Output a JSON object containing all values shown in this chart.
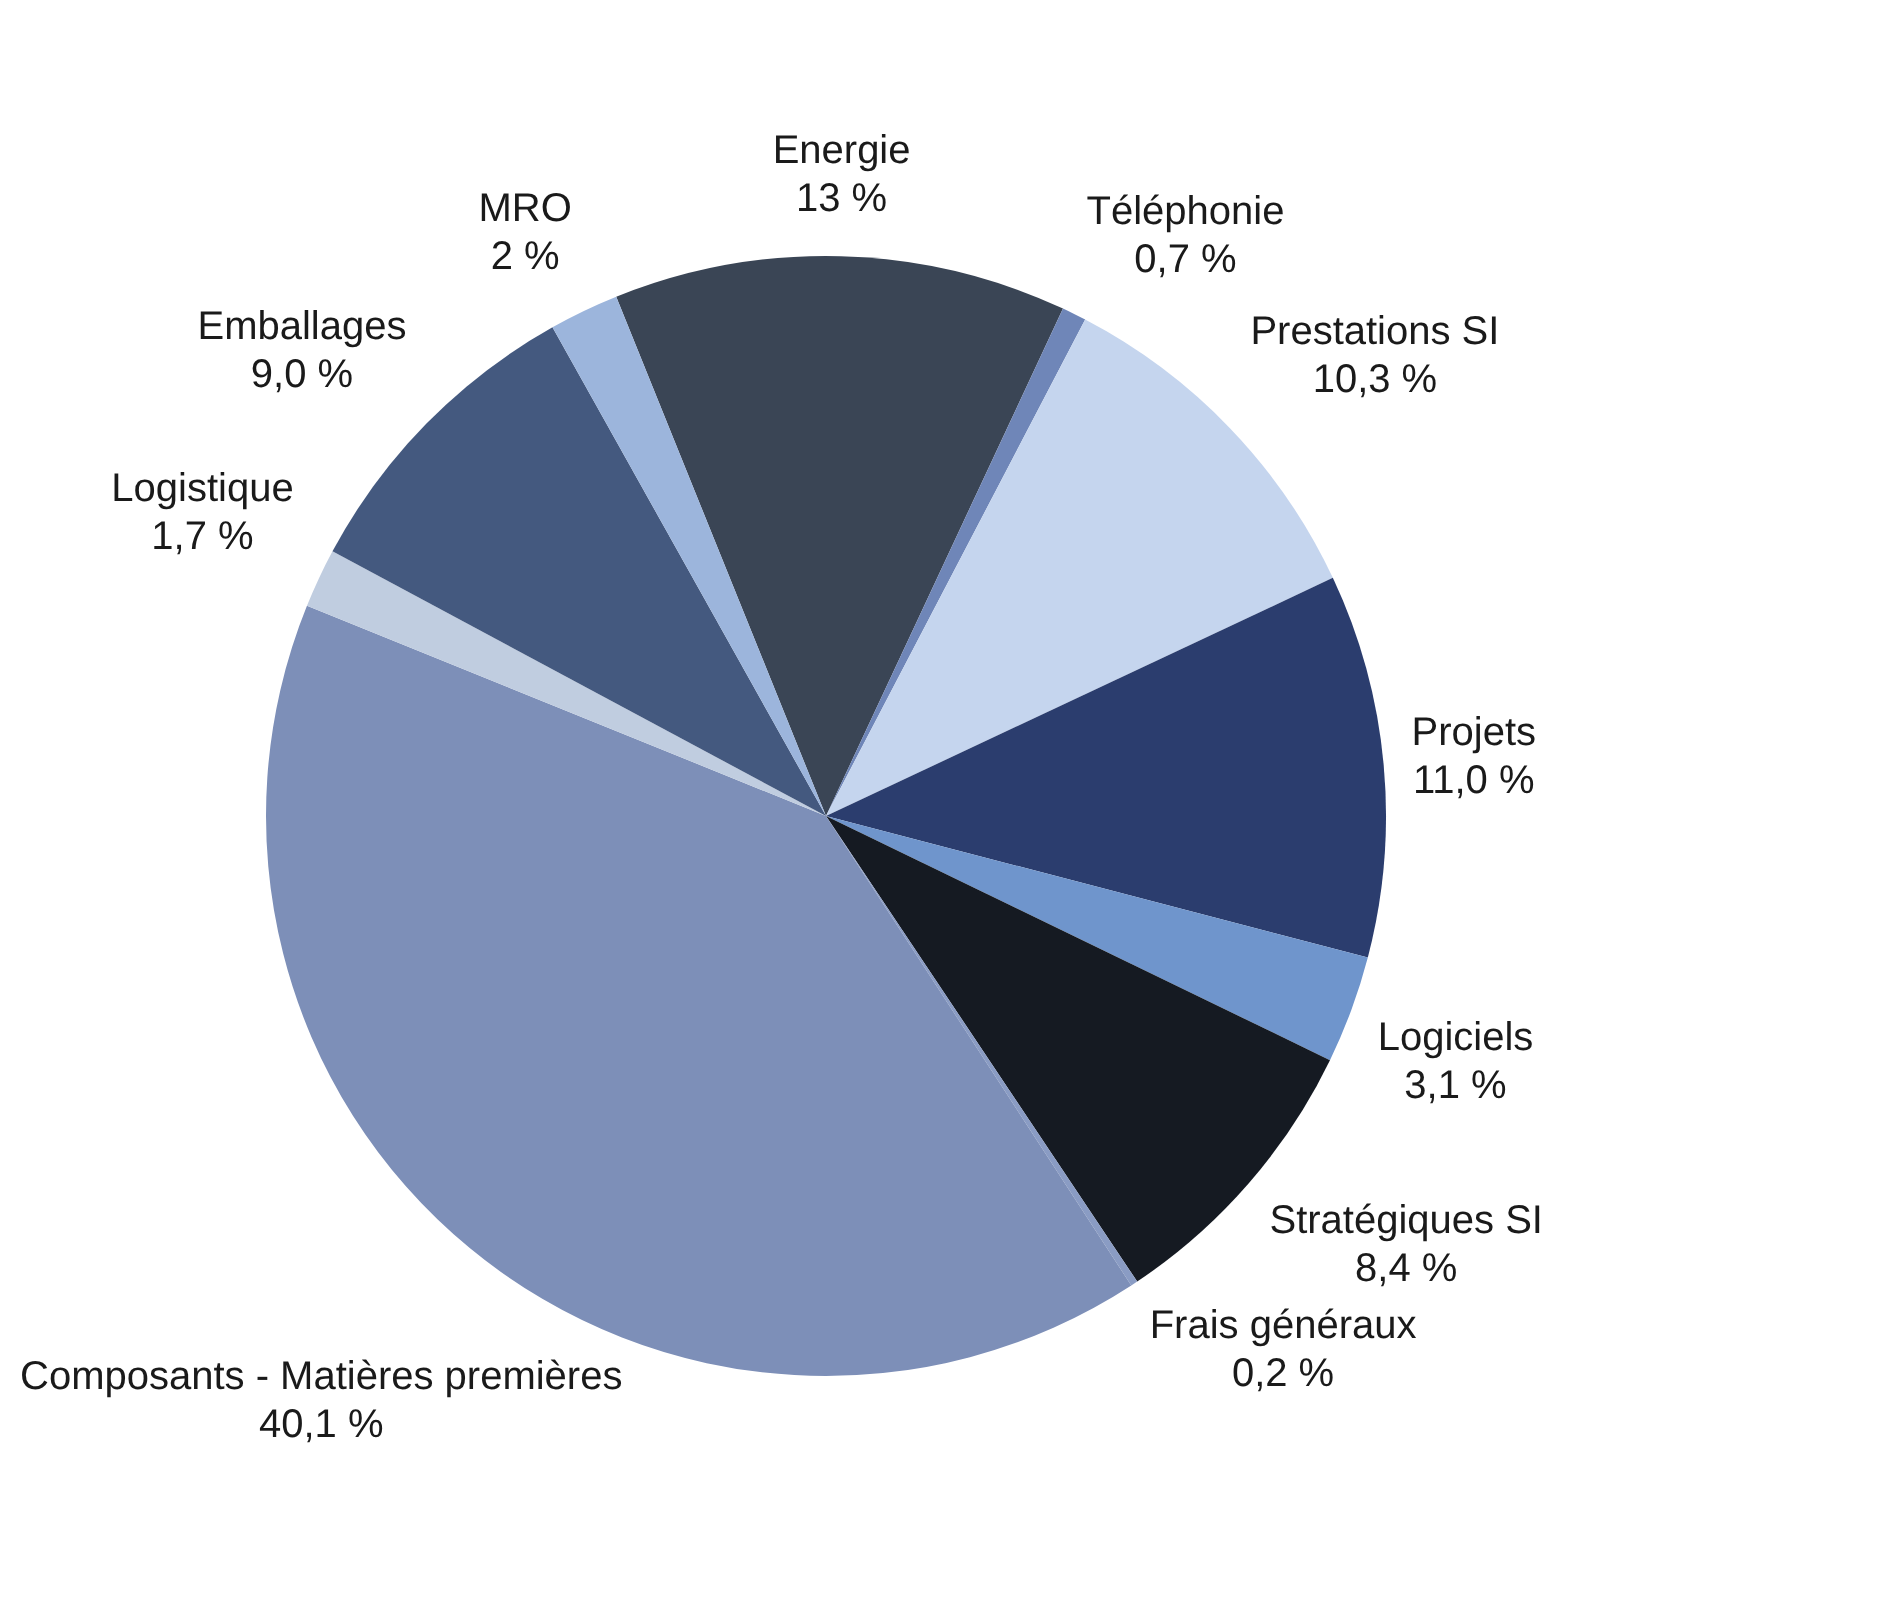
{
  "chart_data": {
    "type": "pie",
    "categories": [
      "Energie",
      "Téléphonie",
      "Prestations SI",
      "Projets",
      "Logiciels",
      "Stratégiques SI",
      "Frais généraux",
      "Composants - Matières premières",
      "Logistique",
      "Emballages",
      "MRO"
    ],
    "values": [
      13,
      0.7,
      10.3,
      11.0,
      3.1,
      8.4,
      0.2,
      40.1,
      1.7,
      9.0,
      2
    ],
    "value_labels": [
      "13 %",
      "0,7 %",
      "10,3 %",
      "11,0 %",
      "3,1 %",
      "8,4 %",
      "0,2 %",
      "40,1 %",
      "1,7 %",
      "9,0 %",
      "2 %"
    ],
    "colors": [
      "#3a4555",
      "#6f86b8",
      "#c5d5ee",
      "#2b3d6e",
      "#6f95cc",
      "#151a22",
      "#8a9cc4",
      "#7d8fb8",
      "#c0cde0",
      "#44597f",
      "#9cb5dc"
    ],
    "legend": false
  }
}
